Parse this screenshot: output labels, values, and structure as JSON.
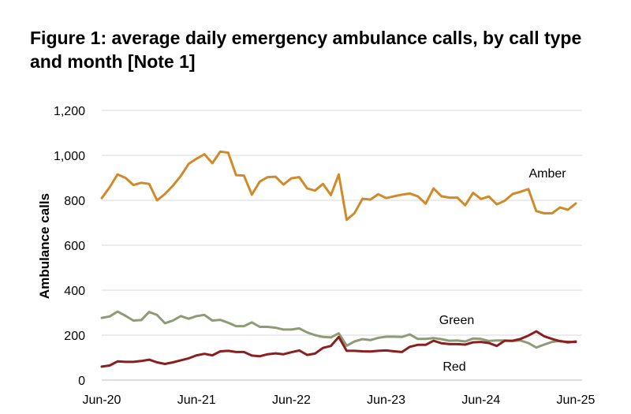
{
  "title": "Figure 1: average daily emergency ambulance calls, by call type and month [Note 1]",
  "chart_data": {
    "type": "line",
    "ylabel": "Ambulance calls",
    "xlabel": "",
    "ylim": [
      0,
      1200
    ],
    "yticks": [
      "0",
      "200",
      "400",
      "600",
      "800",
      "1,000",
      "1,200"
    ],
    "ytick_values": [
      0,
      200,
      400,
      600,
      800,
      1000,
      1200
    ],
    "xtick_labels": [
      "Jun-20",
      "Jun-21",
      "Jun-22",
      "Jun-23",
      "Jun-24",
      "Jun-25"
    ],
    "xtick_index": [
      0,
      12,
      24,
      36,
      48,
      60
    ],
    "x_start": "Jun-20",
    "x_end": "Jun-25",
    "grid": true,
    "legend": "inline labels",
    "series": [
      {
        "name": "Amber",
        "color": "#D08A2A",
        "values": [
          810,
          858,
          915,
          900,
          868,
          878,
          873,
          800,
          828,
          865,
          908,
          962,
          985,
          1005,
          965,
          1017,
          1012,
          912,
          910,
          825,
          883,
          903,
          905,
          870,
          898,
          903,
          853,
          843,
          873,
          823,
          915,
          713,
          743,
          807,
          803,
          827,
          810,
          818,
          825,
          830,
          818,
          785,
          853,
          818,
          812,
          812,
          778,
          833,
          806,
          817,
          782,
          798,
          828,
          838,
          850,
          752,
          742,
          742,
          768,
          758,
          786
        ]
      },
      {
        "name": "Green",
        "color": "#8E9B77",
        "values": [
          277,
          283,
          305,
          286,
          265,
          267,
          303,
          290,
          253,
          265,
          285,
          273,
          285,
          290,
          265,
          268,
          255,
          240,
          240,
          257,
          237,
          237,
          233,
          225,
          225,
          230,
          212,
          200,
          192,
          190,
          208,
          153,
          172,
          182,
          178,
          188,
          193,
          193,
          192,
          203,
          183,
          183,
          187,
          182,
          175,
          176,
          172,
          185,
          183,
          174,
          176,
          176,
          174,
          176,
          165,
          145,
          158,
          170,
          175,
          166,
          173
        ]
      },
      {
        "name": "Red",
        "color": "#8B1E1E",
        "values": [
          60,
          65,
          83,
          81,
          81,
          85,
          91,
          79,
          72,
          79,
          88,
          97,
          110,
          117,
          110,
          128,
          130,
          125,
          125,
          109,
          106,
          115,
          119,
          115,
          124,
          132,
          112,
          118,
          143,
          152,
          192,
          130,
          130,
          128,
          127,
          130,
          132,
          128,
          125,
          148,
          157,
          157,
          175,
          164,
          160,
          160,
          158,
          168,
          170,
          165,
          152,
          175,
          175,
          183,
          198,
          217,
          195,
          183,
          173,
          170,
          170
        ]
      }
    ]
  }
}
